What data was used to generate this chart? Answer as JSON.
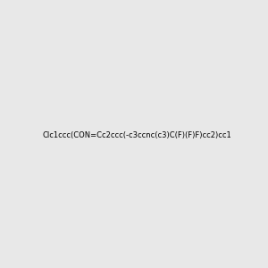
{
  "smiles": "Clc1ccc(CON=Cc2ccc(-c3ccnc(c3)C(F)(F)F)cc2)cc1",
  "image_size": 300,
  "background_color": "#e8e8e8",
  "atom_colors": {
    "N": "#0000ff",
    "O": "#ff0000",
    "F": "#ff00ff",
    "Cl": "#008000",
    "C": "#000000",
    "H": "#4d8f8f"
  },
  "title": "",
  "bond_width": 1.5
}
